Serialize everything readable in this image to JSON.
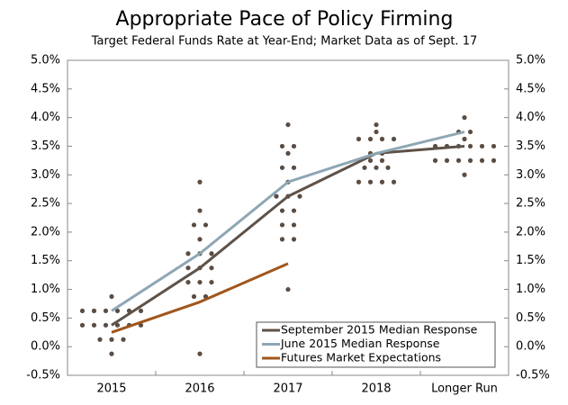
{
  "chart_data": {
    "type": "dot-line",
    "title": "Appropriate Pace of Policy Firming",
    "subtitle": "Target Federal Funds Rate at Year-End; Market Data as of Sept. 17",
    "categories": [
      "2015",
      "2016",
      "2017",
      "2018",
      "Longer Run"
    ],
    "dot_color": "#5b4d43",
    "dots": [
      [
        -0.125,
        0.125,
        0.125,
        0.125,
        0.375,
        0.375,
        0.375,
        0.375,
        0.375,
        0.375,
        0.625,
        0.625,
        0.625,
        0.625,
        0.625,
        0.625,
        0.875
      ],
      [
        -0.125,
        0.875,
        0.875,
        1.125,
        1.125,
        1.125,
        1.375,
        1.375,
        1.375,
        1.625,
        1.625,
        1.625,
        1.875,
        2.125,
        2.125,
        2.375,
        2.875
      ],
      [
        1.0,
        1.875,
        1.875,
        2.125,
        2.125,
        2.375,
        2.375,
        2.625,
        2.625,
        2.625,
        2.875,
        3.125,
        3.125,
        3.375,
        3.5,
        3.5,
        3.875
      ],
      [
        2.875,
        2.875,
        2.875,
        2.875,
        3.125,
        3.125,
        3.125,
        3.25,
        3.25,
        3.375,
        3.375,
        3.625,
        3.625,
        3.625,
        3.625,
        3.75,
        3.875
      ],
      [
        3.0,
        3.25,
        3.25,
        3.25,
        3.25,
        3.25,
        3.25,
        3.5,
        3.5,
        3.5,
        3.5,
        3.5,
        3.5,
        3.625,
        3.75,
        3.75,
        4.0
      ]
    ],
    "series": [
      {
        "name": "September 2015 Median Response",
        "color": "#5e5249",
        "values": [
          0.375,
          1.375,
          2.625,
          3.375,
          3.5
        ]
      },
      {
        "name": "June 2015 Median Response",
        "color": "#8ea6b4",
        "values": [
          0.625,
          1.625,
          2.875,
          3.375,
          3.75
        ]
      },
      {
        "name": "Futures Market Expectations",
        "color": "#a0561c",
        "values": [
          0.25,
          0.78,
          1.45,
          null,
          null
        ]
      }
    ],
    "ylim": [
      -0.5,
      5.0
    ],
    "yticks": [
      {
        "value": -0.5,
        "label": "-0.5%"
      },
      {
        "value": 0,
        "label": "0.0%"
      },
      {
        "value": 0.5,
        "label": "0.5%"
      },
      {
        "value": 1.0,
        "label": "1.0%"
      },
      {
        "value": 1.5,
        "label": "1.5%"
      },
      {
        "value": 2.0,
        "label": "2.0%"
      },
      {
        "value": 2.5,
        "label": "2.5%"
      },
      {
        "value": 3.0,
        "label": "3.0%"
      },
      {
        "value": 3.5,
        "label": "3.5%"
      },
      {
        "value": 4.0,
        "label": "4.0%"
      },
      {
        "value": 4.5,
        "label": "4.5%"
      },
      {
        "value": 5.0,
        "label": "5.0%"
      }
    ],
    "y2lim": [
      -0.5,
      5.0
    ],
    "y2ticks": [
      {
        "value": -0.5,
        "label": "-0.5%"
      },
      {
        "value": 0,
        "label": "0.0%"
      },
      {
        "value": 0.5,
        "label": "0.5%"
      },
      {
        "value": 1.0,
        "label": "1.0%"
      },
      {
        "value": 1.5,
        "label": "1.5%"
      },
      {
        "value": 2.0,
        "label": "2.0%"
      },
      {
        "value": 2.5,
        "label": "2.5%"
      },
      {
        "value": 3.0,
        "label": "3.0%"
      },
      {
        "value": 3.5,
        "label": "3.5%"
      },
      {
        "value": 4.0,
        "label": "4.0%"
      },
      {
        "value": 4.5,
        "label": "4.5%"
      },
      {
        "value": 5.0,
        "label": "5.0%"
      }
    ],
    "legend": "lower right"
  }
}
